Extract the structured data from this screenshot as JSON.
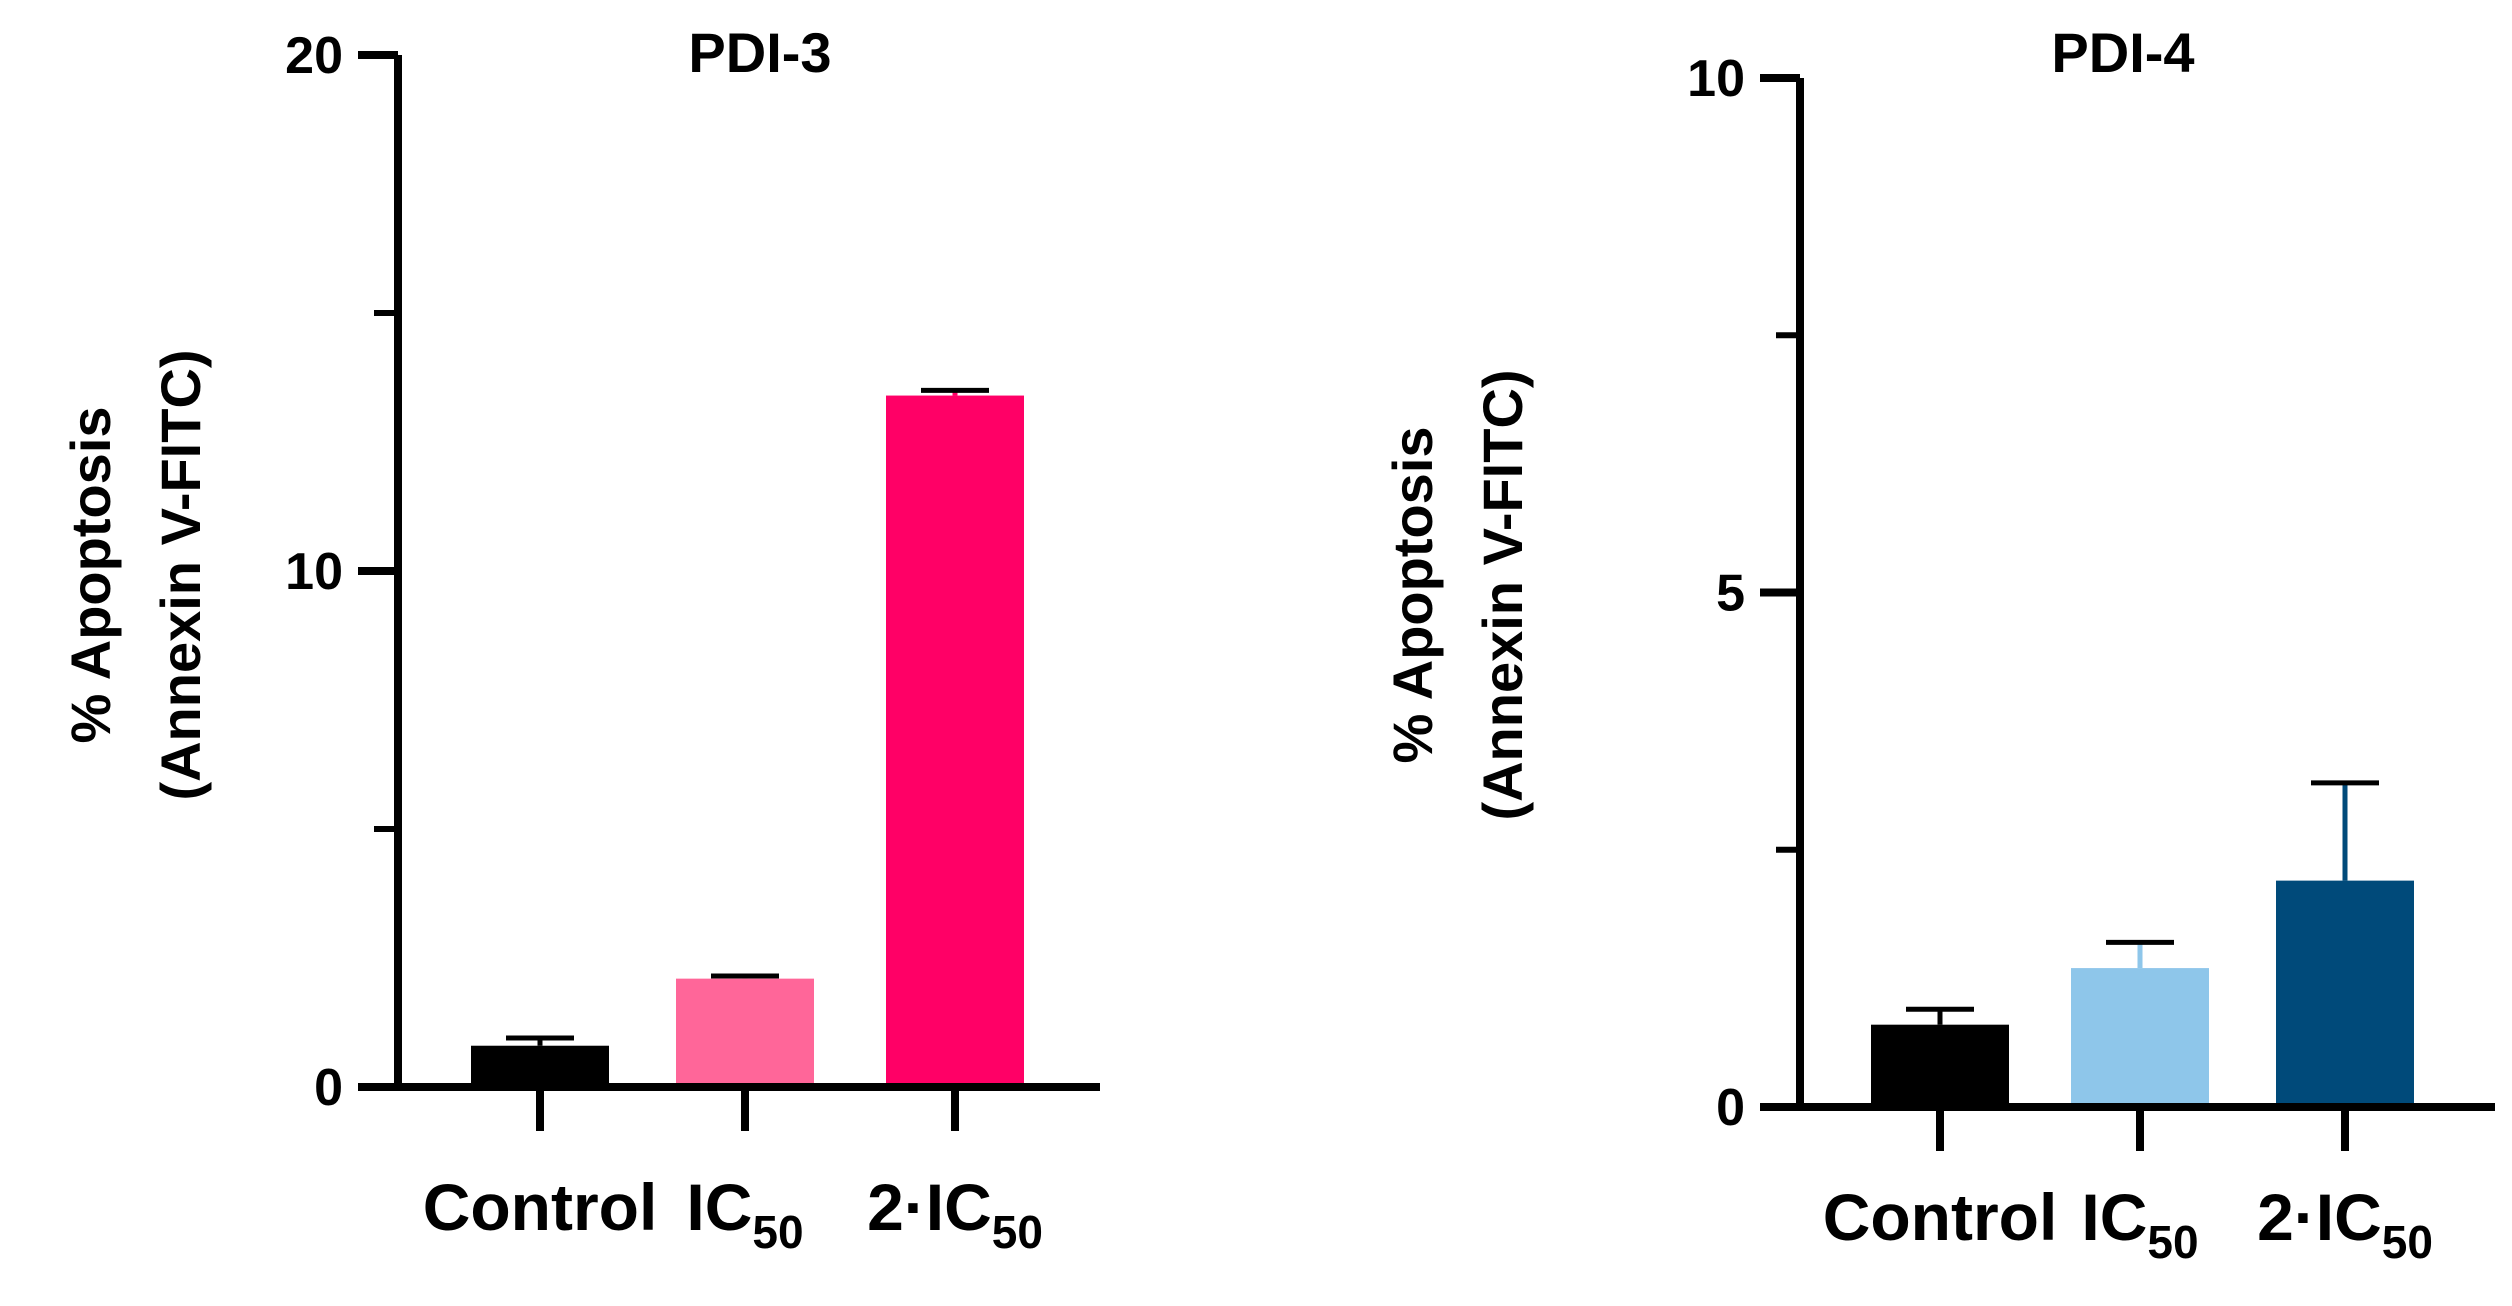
{
  "chart_data": [
    {
      "type": "bar",
      "title": "PDI-3",
      "ylabel_line1": "% Apoptosis",
      "ylabel_line2": "(Annexin V-FITC)",
      "xlabel": "",
      "ylim": [
        0,
        20
      ],
      "yticks_major": [
        0,
        10,
        20
      ],
      "yticks_minor": [
        5,
        15
      ],
      "categories": [
        {
          "main": "Control",
          "sub": ""
        },
        {
          "main": "IC",
          "sub": "50"
        },
        {
          "main": "2·IC",
          "sub": "50"
        }
      ],
      "values": [
        0.8,
        2.1,
        13.4
      ],
      "errors": [
        0.15,
        0.05,
        0.1
      ],
      "colors": [
        "#000000",
        "#FF6699",
        "#FF0066"
      ]
    },
    {
      "type": "bar",
      "title": "PDI-4",
      "ylabel_line1": "% Apoptosis",
      "ylabel_line2": "(Annexin V-FITC)",
      "xlabel": "",
      "ylim": [
        0,
        10
      ],
      "yticks_major": [
        0,
        5,
        10
      ],
      "yticks_minor": [
        2.5,
        7.5
      ],
      "categories": [
        {
          "main": "Control",
          "sub": ""
        },
        {
          "main": "IC",
          "sub": "50"
        },
        {
          "main": "2·IC",
          "sub": "50"
        }
      ],
      "values": [
        0.8,
        1.35,
        2.2
      ],
      "errors": [
        0.15,
        0.25,
        0.95
      ],
      "colors": [
        "#000000",
        "#8EC6EA",
        "#004A7A"
      ]
    }
  ]
}
